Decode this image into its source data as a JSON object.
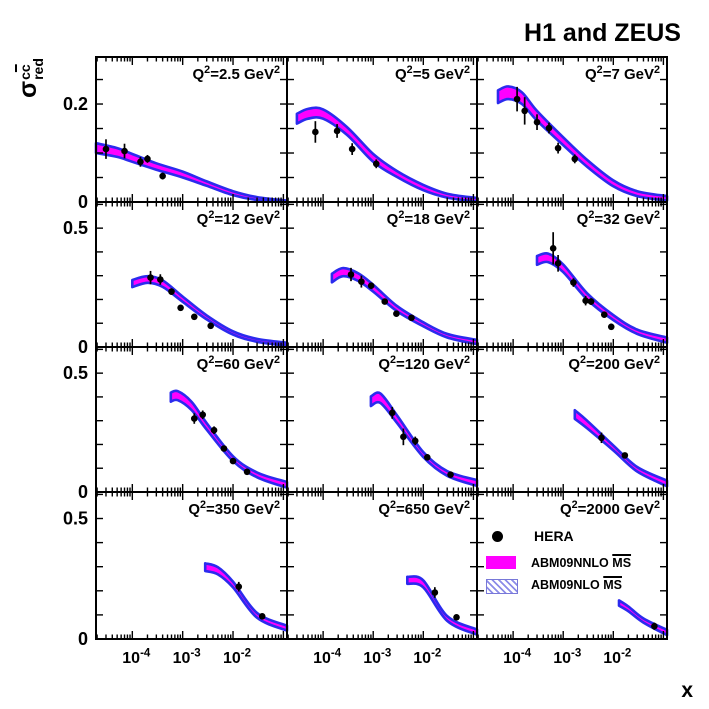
{
  "title": "H1 and ZEUS",
  "xlabel": "x",
  "ylabel": {
    "sigma": "σ",
    "sup_plain": "c",
    "sup_bar": "c",
    "sub": "red"
  },
  "legend": {
    "hera_label": "HERA",
    "nnlo_label": "ABM09NNLO",
    "nnlo_ms": "MS",
    "nlo_label": "ABM09NLO",
    "nlo_ms": "MS"
  },
  "colors": {
    "band_fill": "#FF00FF",
    "band_edge": "#2B2BEE",
    "marker": "#000000",
    "hatch_line": "#8C8CE8",
    "hatch_border": "#7878D8",
    "frame": "#000000"
  },
  "chart_data": {
    "type": "line",
    "title": "H1 and ZEUS",
    "xlabel": "x",
    "ylabel": "sigma_red^ccbar",
    "x_scale": "log",
    "xlim": [
      1.9e-05,
      0.118
    ],
    "x_tick_labels": [
      "10^-4",
      "10^-3",
      "10^-2"
    ],
    "x_tick_values": [
      0.0001,
      0.001,
      0.01
    ],
    "row_ymax": [
      0.296,
      0.61,
      0.61,
      0.61
    ],
    "row_ytick_step": [
      0.05,
      0.1,
      0.1,
      0.1
    ],
    "row_ytick_labels": [
      [
        {
          "label": "0.2",
          "value": 0.2
        },
        {
          "label": "0",
          "value": 0
        }
      ],
      [
        {
          "label": "0.5",
          "value": 0.5
        },
        {
          "label": "0",
          "value": 0
        }
      ],
      [
        {
          "label": "0.5",
          "value": 0.5
        },
        {
          "label": "0",
          "value": 0
        }
      ],
      [
        {
          "label": "0.5",
          "value": 0.5
        },
        {
          "label": "0",
          "value": 0
        }
      ]
    ],
    "legend_entries": [
      "HERA",
      "ABM09NNLO MS-bar",
      "ABM09NLO MS-bar"
    ],
    "panels": [
      {
        "q2": 2.5,
        "label": "Q^2=2.5 GeV^2",
        "points": [
          [
            3e-05,
            0.108,
            0.02
          ],
          [
            7e-05,
            0.104,
            0.015
          ],
          [
            0.000145,
            0.082,
            0.01
          ],
          [
            0.0002,
            0.088,
            0.008
          ],
          [
            0.0004,
            0.053,
            0.007
          ]
        ],
        "band": [
          [
            1.9e-05,
            0.12,
            0.1
          ],
          [
            5e-05,
            0.11,
            0.092
          ],
          [
            0.0001,
            0.098,
            0.082
          ],
          [
            0.0003,
            0.079,
            0.066
          ],
          [
            0.001,
            0.062,
            0.05
          ],
          [
            0.003,
            0.042,
            0.033
          ],
          [
            0.01,
            0.022,
            0.014
          ],
          [
            0.03,
            0.01,
            0.004
          ],
          [
            0.118,
            0.003,
            0.0
          ]
        ]
      },
      {
        "q2": 5,
        "label": "Q^2=5 GeV^2",
        "points": [
          [
            7e-05,
            0.143,
            0.022
          ],
          [
            0.00019,
            0.145,
            0.014
          ],
          [
            0.00038,
            0.108,
            0.012
          ],
          [
            0.00115,
            0.078,
            0.009
          ]
        ],
        "band": [
          [
            3e-05,
            0.18,
            0.16
          ],
          [
            5e-05,
            0.19,
            0.17
          ],
          [
            0.0001,
            0.189,
            0.17
          ],
          [
            0.0003,
            0.153,
            0.137
          ],
          [
            0.001,
            0.098,
            0.082
          ],
          [
            0.003,
            0.063,
            0.051
          ],
          [
            0.01,
            0.035,
            0.024
          ],
          [
            0.03,
            0.017,
            0.009
          ],
          [
            0.118,
            0.008,
            0.001
          ]
        ]
      },
      {
        "q2": 7,
        "label": "Q^2=7 GeV^2",
        "points": [
          [
            0.00012,
            0.21,
            0.025
          ],
          [
            0.00017,
            0.186,
            0.028
          ],
          [
            0.0003,
            0.163,
            0.016
          ],
          [
            0.00052,
            0.151,
            0.011
          ],
          [
            0.00079,
            0.11,
            0.011
          ],
          [
            0.0017,
            0.088,
            0.009
          ]
        ],
        "band": [
          [
            5e-05,
            0.228,
            0.202
          ],
          [
            8e-05,
            0.236,
            0.21
          ],
          [
            0.00015,
            0.224,
            0.2
          ],
          [
            0.0003,
            0.186,
            0.166
          ],
          [
            0.001,
            0.132,
            0.116
          ],
          [
            0.003,
            0.086,
            0.072
          ],
          [
            0.01,
            0.044,
            0.032
          ],
          [
            0.03,
            0.022,
            0.012
          ],
          [
            0.118,
            0.012,
            0.003
          ]
        ]
      },
      {
        "q2": 12,
        "label": "Q^2=12 GeV^2",
        "points": [
          [
            0.00023,
            0.292,
            0.028
          ],
          [
            0.00036,
            0.284,
            0.022
          ],
          [
            0.0006,
            0.233,
            0.014
          ],
          [
            0.00091,
            0.165,
            0.012
          ],
          [
            0.0017,
            0.127,
            0.01
          ],
          [
            0.0036,
            0.089,
            0.008
          ]
        ],
        "band": [
          [
            0.0001,
            0.282,
            0.252
          ],
          [
            0.0002,
            0.298,
            0.27
          ],
          [
            0.0004,
            0.28,
            0.253
          ],
          [
            0.001,
            0.212,
            0.19
          ],
          [
            0.003,
            0.133,
            0.116
          ],
          [
            0.01,
            0.066,
            0.052
          ],
          [
            0.03,
            0.034,
            0.022
          ],
          [
            0.118,
            0.018,
            0.006
          ]
        ]
      },
      {
        "q2": 18,
        "label": "Q^2=18 GeV^2",
        "points": [
          [
            0.00036,
            0.305,
            0.028
          ],
          [
            0.00058,
            0.275,
            0.025
          ],
          [
            0.00091,
            0.258,
            0.013
          ],
          [
            0.0017,
            0.191,
            0.011
          ],
          [
            0.0029,
            0.14,
            0.009
          ],
          [
            0.0058,
            0.123,
            0.008
          ]
        ],
        "band": [
          [
            0.00015,
            0.308,
            0.272
          ],
          [
            0.00025,
            0.332,
            0.298
          ],
          [
            0.0005,
            0.31,
            0.278
          ],
          [
            0.001,
            0.262,
            0.233
          ],
          [
            0.003,
            0.172,
            0.15
          ],
          [
            0.01,
            0.104,
            0.087
          ],
          [
            0.03,
            0.055,
            0.04
          ],
          [
            0.118,
            0.03,
            0.012
          ]
        ]
      },
      {
        "q2": 32,
        "label": "Q^2=32 GeV^2",
        "points": [
          [
            0.00063,
            0.415,
            0.068
          ],
          [
            0.00079,
            0.352,
            0.035
          ],
          [
            0.0016,
            0.271,
            0.018
          ],
          [
            0.0028,
            0.195,
            0.02
          ],
          [
            0.0036,
            0.191,
            0.014
          ],
          [
            0.0066,
            0.136,
            0.011
          ],
          [
            0.0091,
            0.085,
            0.013
          ]
        ],
        "band": [
          [
            0.0003,
            0.383,
            0.346
          ],
          [
            0.0005,
            0.393,
            0.357
          ],
          [
            0.001,
            0.347,
            0.315
          ],
          [
            0.003,
            0.226,
            0.2
          ],
          [
            0.01,
            0.134,
            0.113
          ],
          [
            0.03,
            0.073,
            0.055
          ],
          [
            0.118,
            0.04,
            0.018
          ]
        ]
      },
      {
        "q2": 60,
        "label": "Q^2=60 GeV^2",
        "points": [
          [
            0.0017,
            0.309,
            0.022
          ],
          [
            0.0025,
            0.325,
            0.018
          ],
          [
            0.0042,
            0.26,
            0.016
          ],
          [
            0.0066,
            0.183,
            0.011
          ],
          [
            0.01,
            0.13,
            0.011
          ],
          [
            0.019,
            0.085,
            0.009
          ]
        ],
        "band": [
          [
            0.00058,
            0.418,
            0.38
          ],
          [
            0.0008,
            0.424,
            0.386
          ],
          [
            0.0015,
            0.38,
            0.345
          ],
          [
            0.003,
            0.29,
            0.262
          ],
          [
            0.01,
            0.15,
            0.13
          ],
          [
            0.03,
            0.082,
            0.062
          ],
          [
            0.118,
            0.042,
            0.018
          ]
        ]
      },
      {
        "q2": 120,
        "label": "Q^2=120 GeV^2",
        "points": [
          [
            0.0024,
            0.333,
            0.025
          ],
          [
            0.004,
            0.232,
            0.035
          ],
          [
            0.0069,
            0.215,
            0.018
          ],
          [
            0.012,
            0.146,
            0.013
          ],
          [
            0.035,
            0.073,
            0.009
          ]
        ],
        "band": [
          [
            0.0009,
            0.402,
            0.362
          ],
          [
            0.0014,
            0.414,
            0.374
          ],
          [
            0.003,
            0.322,
            0.29
          ],
          [
            0.01,
            0.168,
            0.147
          ],
          [
            0.03,
            0.088,
            0.068
          ],
          [
            0.118,
            0.05,
            0.026
          ]
        ]
      },
      {
        "q2": 200,
        "label": "Q^2=200 GeV^2",
        "points": [
          [
            0.0058,
            0.228,
            0.022
          ],
          [
            0.017,
            0.154,
            0.011
          ]
        ],
        "band": [
          [
            0.0017,
            0.344,
            0.308
          ],
          [
            0.003,
            0.3,
            0.268
          ],
          [
            0.01,
            0.196,
            0.175
          ],
          [
            0.03,
            0.105,
            0.086
          ],
          [
            0.118,
            0.048,
            0.024
          ]
        ]
      },
      {
        "q2": 350,
        "label": "Q^2=350 GeV^2",
        "points": [
          [
            0.013,
            0.217,
            0.02
          ],
          [
            0.038,
            0.094,
            0.01
          ]
        ],
        "band": [
          [
            0.0028,
            0.314,
            0.282
          ],
          [
            0.005,
            0.298,
            0.268
          ],
          [
            0.01,
            0.238,
            0.214
          ],
          [
            0.03,
            0.108,
            0.088
          ],
          [
            0.118,
            0.055,
            0.035
          ]
        ]
      },
      {
        "q2": 650,
        "label": "Q^2=650 GeV^2",
        "points": [
          [
            0.017,
            0.193,
            0.022
          ],
          [
            0.046,
            0.09,
            0.011
          ]
        ],
        "band": [
          [
            0.0048,
            0.258,
            0.229
          ],
          [
            0.01,
            0.243,
            0.214
          ],
          [
            0.03,
            0.095,
            0.075
          ],
          [
            0.118,
            0.04,
            0.018
          ]
        ]
      },
      {
        "q2": 2000,
        "label": "Q^2=2000 GeV^2",
        "points": [
          [
            0.066,
            0.053,
            0.015
          ]
        ],
        "band": [
          [
            0.013,
            0.16,
            0.138
          ],
          [
            0.02,
            0.135,
            0.115
          ],
          [
            0.04,
            0.085,
            0.068
          ],
          [
            0.118,
            0.038,
            0.016
          ]
        ]
      }
    ]
  }
}
